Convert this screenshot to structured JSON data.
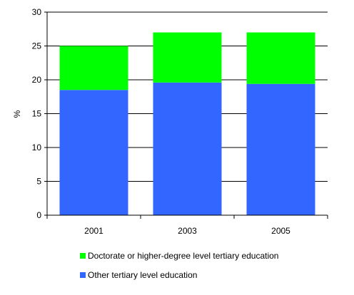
{
  "chart_data": {
    "type": "bar",
    "stacked": true,
    "categories": [
      "2001",
      "2003",
      "2005"
    ],
    "series": [
      {
        "name": "Other tertiary level education",
        "values": [
          18.5,
          19.6,
          19.4
        ],
        "color": "#3366ff"
      },
      {
        "name": "Doctorate or higher-degree level tertiary education",
        "values": [
          6.5,
          7.4,
          7.6
        ],
        "color": "#00ff00"
      }
    ],
    "ylabel": "%",
    "ylim": [
      0,
      30
    ],
    "yticks": [
      0,
      5,
      10,
      15,
      20,
      25,
      30
    ],
    "grid": true,
    "legend_position": "bottom"
  },
  "legend": [
    {
      "label": "Doctorate or higher-degree level tertiary education",
      "color": "#00ff00"
    },
    {
      "label": "Other tertiary level education",
      "color": "#3366ff"
    }
  ]
}
